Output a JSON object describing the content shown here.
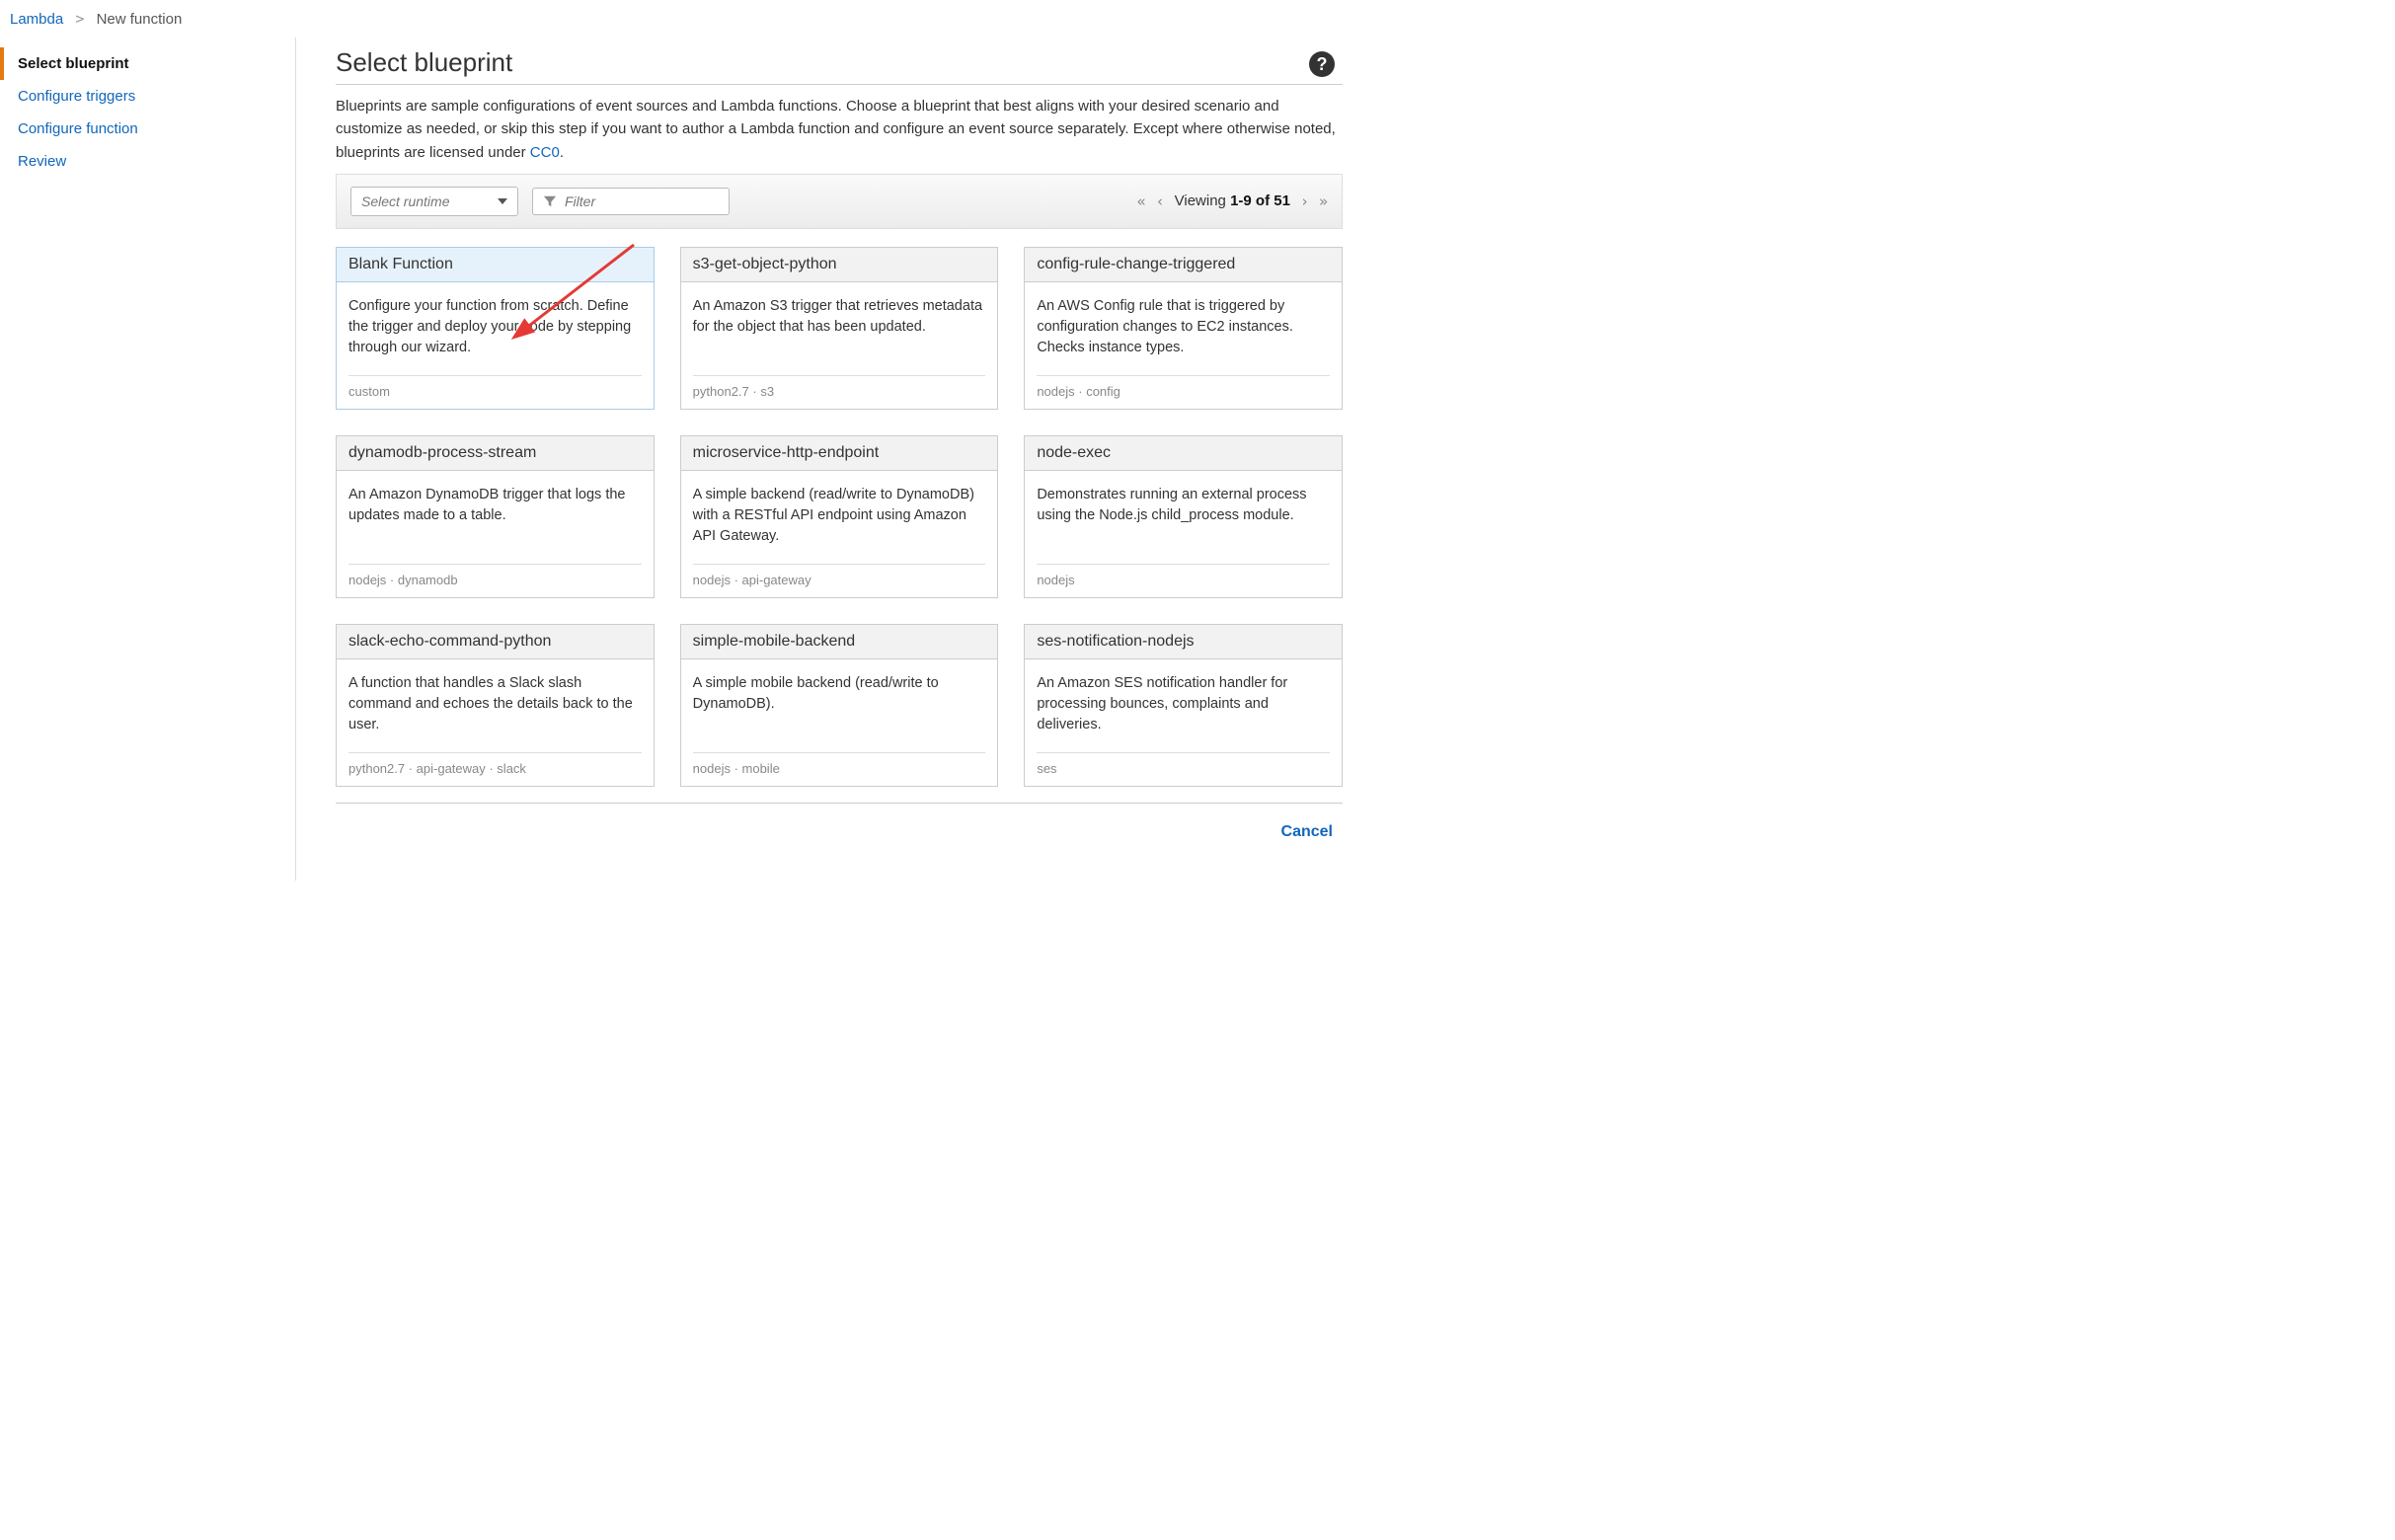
{
  "breadcrumb": {
    "root": "Lambda",
    "current": "New function"
  },
  "sidebar": {
    "items": [
      {
        "label": "Select blueprint",
        "active": true
      },
      {
        "label": "Configure triggers",
        "active": false
      },
      {
        "label": "Configure function",
        "active": false
      },
      {
        "label": "Review",
        "active": false
      }
    ]
  },
  "page": {
    "title": "Select blueprint",
    "description_pre": "Blueprints are sample configurations of event sources and Lambda functions. Choose a blueprint that best aligns with your desired scenario and customize as needed, or skip this step if you want to author a Lambda function and configure an event source separately. Except where otherwise noted, blueprints are licensed under ",
    "description_link": "CC0",
    "description_post": "."
  },
  "toolbar": {
    "runtime_placeholder": "Select runtime",
    "filter_placeholder": "Filter",
    "pager_prefix": "Viewing ",
    "pager_range": "1-9 of 51"
  },
  "cards": [
    {
      "title": "Blank Function",
      "desc": "Configure your function from scratch. Define the trigger and deploy your code by stepping through our wizard.",
      "tags": "custom",
      "selected": true
    },
    {
      "title": "s3-get-object-python",
      "desc": "An Amazon S3 trigger that retrieves metadata for the object that has been updated.",
      "tags": "python2.7 · s3",
      "selected": false
    },
    {
      "title": "config-rule-change-triggered",
      "desc": "An AWS Config rule that is triggered by configuration changes to EC2 instances. Checks instance types.",
      "tags": "nodejs · config",
      "selected": false
    },
    {
      "title": "dynamodb-process-stream",
      "desc": "An Amazon DynamoDB trigger that logs the updates made to a table.",
      "tags": "nodejs · dynamodb",
      "selected": false
    },
    {
      "title": "microservice-http-endpoint",
      "desc": "A simple backend (read/write to DynamoDB) with a RESTful API endpoint using Amazon API Gateway.",
      "tags": "nodejs · api-gateway",
      "selected": false
    },
    {
      "title": "node-exec",
      "desc": "Demonstrates running an external process using the Node.js child_process module.",
      "tags": "nodejs",
      "selected": false
    },
    {
      "title": "slack-echo-command-python",
      "desc": "A function that handles a Slack slash command and echoes the details back to the user.",
      "tags": "python2.7 · api-gateway · slack",
      "selected": false
    },
    {
      "title": "simple-mobile-backend",
      "desc": "A simple mobile backend (read/write to DynamoDB).",
      "tags": "nodejs · mobile",
      "selected": false
    },
    {
      "title": "ses-notification-nodejs",
      "desc": "An Amazon SES notification handler for processing bounces, complaints and deliveries.",
      "tags": "ses",
      "selected": false
    }
  ],
  "footer": {
    "cancel": "Cancel"
  },
  "colors": {
    "link": "#1166bb",
    "accent_orange": "#e47911",
    "card_border": "#cccccc",
    "selected_bg": "#e6f2fb",
    "selected_border": "#a9cbe8",
    "toolbar_bg_top": "#fafafa",
    "toolbar_bg_bottom": "#ececec",
    "muted_text": "#888888",
    "arrow_color": "#e53935"
  }
}
